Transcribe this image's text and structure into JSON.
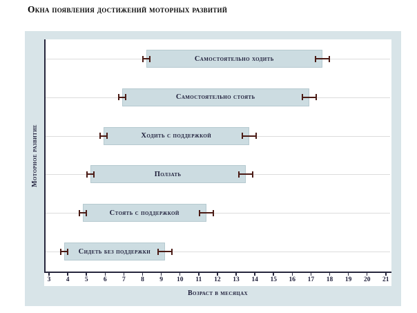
{
  "title": "Окна появления достижений моторных развитий",
  "chart_data": {
    "type": "bar",
    "subtype": "horizontal-range-bars",
    "title": "Окна появления достижений моторных развитий",
    "xlabel": "Возраст в месяцах",
    "ylabel": "Моторное развитие",
    "xlim": [
      3,
      21
    ],
    "x_ticks": [
      3,
      4,
      5,
      6,
      7,
      8,
      9,
      10,
      11,
      12,
      13,
      14,
      15,
      16,
      17,
      18,
      19,
      20,
      21
    ],
    "grid": "one horizontal light gridline through each bar row",
    "legend_position": "none",
    "bars": [
      {
        "label": "Самостоятельно ходить",
        "start_months": 8.2,
        "end_months": 17.6
      },
      {
        "label": "Самостоятельно стоять",
        "start_months": 6.9,
        "end_months": 16.9
      },
      {
        "label": "Ходить с поддержкой",
        "start_months": 5.9,
        "end_months": 13.7
      },
      {
        "label": "Ползать",
        "start_months": 5.2,
        "end_months": 13.5
      },
      {
        "label": "Стоять с поддержкой",
        "start_months": 4.8,
        "end_months": 11.4
      },
      {
        "label": "Сидеть без поддержки",
        "start_months": 3.8,
        "end_months": 9.2
      }
    ],
    "annotations": "dark maroon capped whisker markers straddle both ends of every bar",
    "colors": {
      "panel_bg": "#d8e4e8",
      "plot_bg": "#ffffff",
      "bar_fill": "#ccdce1",
      "bar_border": "#b5c9cf",
      "whisker": "#4b1b15",
      "axis": "#26263c",
      "grid_line": "#dcdcdc",
      "text": "#1c1c38",
      "title_text": "#050505"
    }
  }
}
